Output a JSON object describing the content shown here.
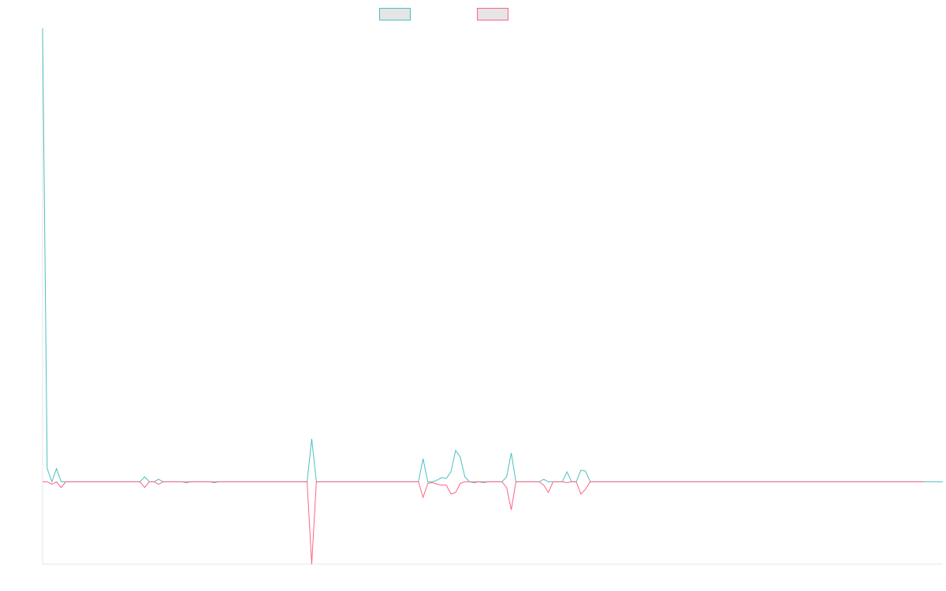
{
  "chart_data": {
    "type": "line",
    "title": "",
    "xlabel": "",
    "ylabel": "",
    "grid": false,
    "legend_position": "top-center",
    "ylim": [
      -500,
      2750
    ],
    "series": [
      {
        "name": "",
        "color": "#4bc0c0",
        "fill": "#e5e5e5",
        "values": [
          2750,
          80,
          0,
          80,
          0,
          0,
          0,
          0,
          0,
          0,
          0,
          0,
          0,
          0,
          0,
          0,
          0,
          0,
          0,
          0,
          0,
          0,
          30,
          0,
          0,
          15,
          0,
          0,
          0,
          0,
          0,
          0,
          0,
          0,
          0,
          0,
          0,
          0,
          0,
          0,
          0,
          0,
          0,
          0,
          0,
          0,
          0,
          0,
          0,
          0,
          0,
          0,
          0,
          0,
          0,
          0,
          0,
          0,
          260,
          0,
          0,
          0,
          0,
          0,
          0,
          0,
          0,
          0,
          0,
          0,
          0,
          0,
          0,
          0,
          0,
          0,
          0,
          0,
          0,
          0,
          0,
          0,
          140,
          0,
          0,
          10,
          25,
          20,
          60,
          190,
          150,
          30,
          0,
          0,
          0,
          0,
          0,
          0,
          0,
          0,
          30,
          175,
          0,
          0,
          0,
          0,
          0,
          0,
          15,
          0,
          0,
          0,
          0,
          60,
          0,
          0,
          70,
          65,
          0,
          0,
          0,
          0,
          0,
          0,
          0,
          0,
          0,
          0,
          0,
          0,
          0,
          0,
          0,
          0,
          0,
          0,
          0,
          0,
          0,
          0,
          0,
          0,
          0,
          0,
          0,
          0,
          0,
          0,
          0,
          0,
          0,
          0,
          0,
          0,
          0,
          0,
          0,
          0,
          0,
          0,
          0,
          0,
          0,
          0,
          0,
          0,
          0,
          0,
          0,
          0,
          0,
          0,
          0,
          0,
          0,
          0,
          0,
          0,
          0,
          0,
          0,
          0,
          0,
          0,
          0,
          0,
          0,
          0,
          0,
          0,
          0,
          0,
          0,
          0,
          0
        ]
      },
      {
        "name": "",
        "color": "#ff6384",
        "fill": "#e5e5e5",
        "values": [
          0,
          0,
          -15,
          0,
          -35,
          0,
          0,
          0,
          0,
          0,
          0,
          0,
          0,
          0,
          0,
          0,
          0,
          0,
          0,
          0,
          0,
          0,
          -35,
          0,
          0,
          -15,
          0,
          0,
          0,
          0,
          0,
          -5,
          0,
          0,
          0,
          0,
          0,
          -5,
          0,
          0,
          0,
          0,
          0,
          0,
          0,
          0,
          0,
          0,
          0,
          0,
          0,
          0,
          0,
          0,
          0,
          0,
          0,
          0,
          -500,
          0,
          0,
          0,
          0,
          0,
          0,
          0,
          0,
          0,
          0,
          0,
          0,
          0,
          0,
          0,
          0,
          0,
          0,
          0,
          0,
          0,
          0,
          0,
          -95,
          -10,
          -5,
          -15,
          -20,
          -20,
          -75,
          -65,
          -10,
          0,
          0,
          -5,
          0,
          -5,
          0,
          0,
          0,
          0,
          -35,
          -170,
          0,
          0,
          0,
          0,
          0,
          0,
          -20,
          -65,
          0,
          0,
          0,
          -5,
          0,
          0,
          -75,
          -45,
          0,
          0,
          0,
          0,
          0,
          0,
          0,
          0,
          0,
          0,
          0,
          0,
          0,
          0,
          0,
          0,
          0,
          0,
          0,
          0,
          0,
          0,
          0,
          0,
          0,
          0,
          0,
          0,
          0,
          0,
          0,
          0,
          0,
          0,
          0,
          0,
          0,
          0,
          0,
          0,
          0,
          0,
          0,
          0,
          0,
          0,
          0,
          0,
          0,
          0,
          0,
          0,
          0,
          0,
          0,
          0,
          0,
          0,
          0,
          0,
          0,
          0,
          0,
          0,
          0,
          0,
          0,
          0,
          0,
          0,
          0,
          0,
          0
        ]
      }
    ]
  }
}
